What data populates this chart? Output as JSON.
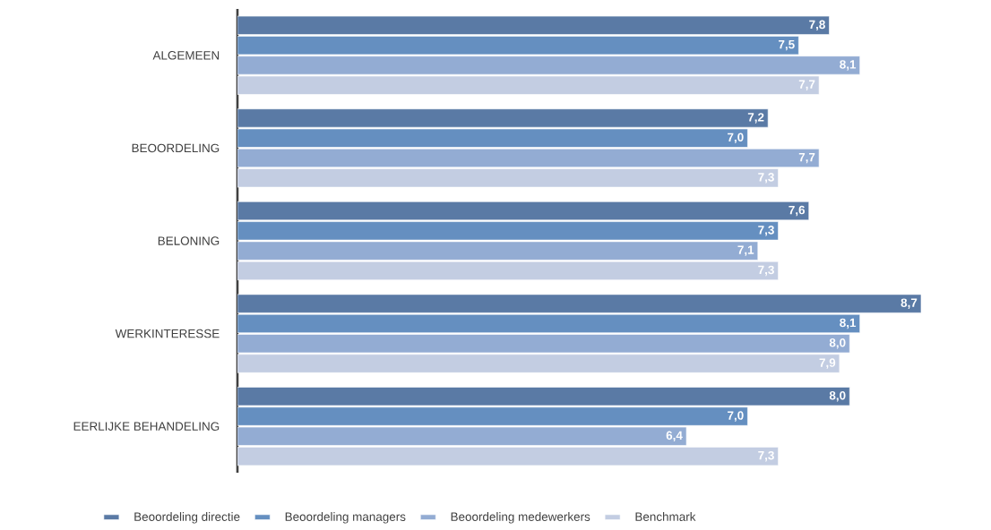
{
  "chart_data": {
    "type": "bar",
    "orientation": "horizontal",
    "categories": [
      "ALGEMEEN",
      "BEOORDELING",
      "BELONING",
      "WERKINTERESSE",
      "EERLIJKE BEHANDELING"
    ],
    "xlim": [
      2,
      8.7
    ],
    "tick_labels": "y",
    "legend": "bottom",
    "series": [
      {
        "name": "Beoordeling directie",
        "color": "#5a7aa5",
        "values": [
          7.8,
          7.2,
          7.6,
          8.7,
          8.0
        ],
        "value_labels": [
          "7,8",
          "7,2",
          "7,6",
          "8,7",
          "8,0"
        ]
      },
      {
        "name": "Beoordeling managers",
        "color": "#658fc0",
        "values": [
          7.5,
          7.0,
          7.3,
          8.1,
          7.0
        ],
        "value_labels": [
          "7,5",
          "7,0",
          "7,3",
          "8,1",
          "7,0"
        ]
      },
      {
        "name": "Beoordeling medewerkers",
        "color": "#93acd3",
        "values": [
          8.1,
          7.7,
          7.1,
          8.0,
          6.4
        ],
        "value_labels": [
          "8,1",
          "7,7",
          "7,1",
          "8,0",
          "6,4"
        ]
      },
      {
        "name": "Benchmark",
        "color": "#c3cde2",
        "values": [
          7.7,
          7.3,
          7.3,
          7.9,
          7.3
        ],
        "value_labels": [
          "7,7",
          "7,3",
          "7,3",
          "7,9",
          "7,3"
        ]
      }
    ]
  }
}
